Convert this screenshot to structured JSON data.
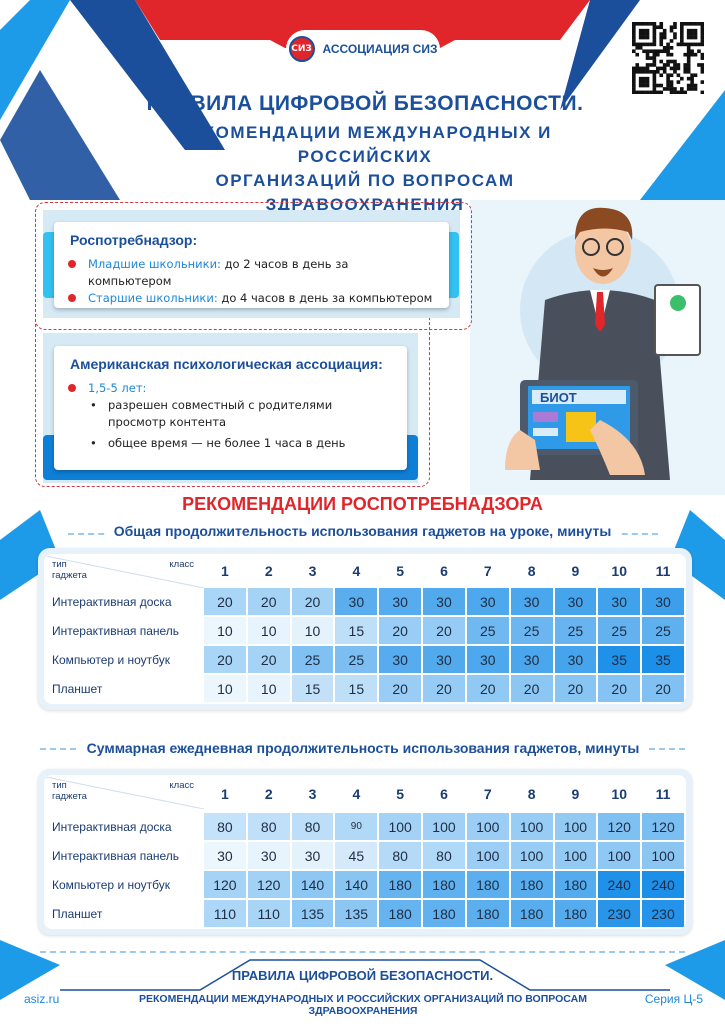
{
  "colors": {
    "brand_blue": "#1b4f9c",
    "accent_red": "#e0252b",
    "light_blue": "#1e9be8"
  },
  "header": {
    "logo_text": "АССОЦИАЦИЯ СИЗ",
    "logo_mark": "СИЗ",
    "title_line1": "ПРАВИЛА ЦИФРОВОЙ БЕЗОПАСНОСТИ.",
    "title_line2": "РЕКОМЕНДАЦИИ МЕЖДУНАРОДНЫХ И РОССИЙСКИХ",
    "title_line3": "ОРГАНИЗАЦИЙ ПО ВОПРОСАМ ЗДРАВООХРАНЕНИЯ"
  },
  "card1": {
    "title": "Роспотребнадзор:",
    "items": [
      {
        "label": "Младшие школьники:",
        "text": " до 2 часов в день за компьютером"
      },
      {
        "label": "Старшие школьники:",
        "text": " до 4 часов в день за компьютером"
      }
    ]
  },
  "card2": {
    "title": "Американская психологическая ассоциация:",
    "age": "1,5-5 лет:",
    "subitems": [
      "разрешен  совместный с родителями просмотр контента",
      "общее время — не более 1 часа в день"
    ]
  },
  "illustration": {
    "tablet_text": "БИОТ"
  },
  "section_title": "РЕКОМЕНДАЦИИ РОСПОТРЕБНАДЗОРА",
  "tables": [
    {
      "title": "Общая продолжительность использования гаджетов на уроке, минуты",
      "corner_row": "тип гаджета",
      "corner_col": "класс",
      "grades": [
        "1",
        "2",
        "3",
        "4",
        "5",
        "6",
        "7",
        "8",
        "9",
        "10",
        "11"
      ],
      "rows": [
        {
          "label": "Интерактивная доска",
          "values": [
            20,
            20,
            20,
            30,
            30,
            30,
            30,
            30,
            30,
            30,
            30
          ]
        },
        {
          "label": "Интерактивная панель",
          "values": [
            10,
            10,
            10,
            15,
            20,
            20,
            25,
            25,
            25,
            25,
            25
          ]
        },
        {
          "label": "Компьютер и ноутбук",
          "values": [
            20,
            20,
            25,
            25,
            30,
            30,
            30,
            30,
            30,
            35,
            35
          ]
        },
        {
          "label": "Планшет",
          "values": [
            10,
            10,
            15,
            15,
            20,
            20,
            20,
            20,
            20,
            20,
            20
          ]
        }
      ]
    },
    {
      "title": "Суммарная ежедневная продолжительность использования гаджетов, минуты",
      "corner_row": "тип гаджета",
      "corner_col": "класс",
      "grades": [
        "1",
        "2",
        "3",
        "4",
        "5",
        "6",
        "7",
        "8",
        "9",
        "10",
        "11"
      ],
      "rows": [
        {
          "label": "Интерактивная доска",
          "values": [
            80,
            80,
            80,
            90,
            100,
            100,
            100,
            100,
            100,
            120,
            120
          ]
        },
        {
          "label": "Интерактивная панель",
          "values": [
            30,
            30,
            30,
            45,
            80,
            80,
            100,
            100,
            100,
            100,
            100
          ]
        },
        {
          "label": "Компьютер и ноутбук",
          "values": [
            120,
            120,
            140,
            140,
            180,
            180,
            180,
            180,
            180,
            240,
            240
          ]
        },
        {
          "label": "Планшет",
          "values": [
            110,
            110,
            135,
            135,
            180,
            180,
            180,
            180,
            180,
            230,
            230
          ]
        }
      ]
    }
  ],
  "footer": {
    "title": "ПРАВИЛА ЦИФРОВОЙ БЕЗОПАСНОСТИ.",
    "subtitle": "РЕКОМЕНДАЦИИ МЕЖДУНАРОДНЫХ И РОССИЙСКИХ ОРГАНИЗАЦИЙ ПО ВОПРОСАМ ЗДРАВООХРАНЕНИЯ",
    "site": "asiz.ru",
    "series": "Серия Ц-5"
  }
}
